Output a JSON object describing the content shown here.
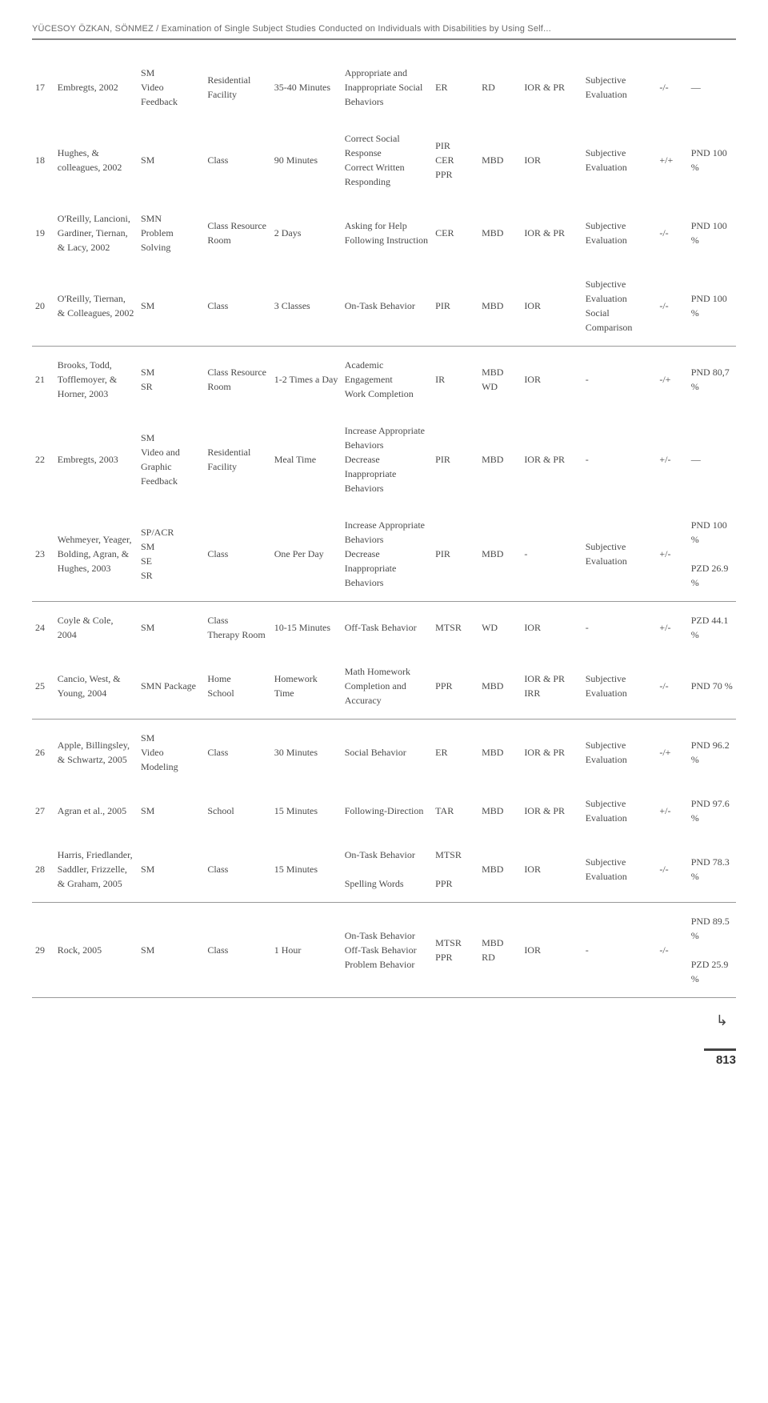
{
  "header": {
    "running": "YÜCESOY ÖZKAN, SÖNMEZ / Examination of Single Subject Studies Conducted on Individuals with Disabilities by Using Self..."
  },
  "page_number": "813",
  "continue_glyph": "↳",
  "rows": [
    {
      "n": "17",
      "authors": "Embregts, 2002",
      "method": "SM\nVideo Feedback",
      "setting": "Residential Facility",
      "duration": "35-40 Minutes",
      "dv": "Appropriate and Inappropriate Social Behaviors",
      "rec": "ER",
      "design": "RD",
      "rel": "IOR & PR",
      "sv": "Subjective Evaluation",
      "gm": "-/-",
      "eff": "—",
      "sep": false
    },
    {
      "n": "18",
      "authors": "Hughes, & colleagues, 2002",
      "method": "SM",
      "setting": "Class",
      "duration": "90 Minutes",
      "dv": "Correct Social Response\nCorrect Written Responding",
      "rec": "PIR\nCER\nPPR",
      "design": "MBD",
      "rel": "IOR",
      "sv": "Subjective Evaluation",
      "gm": "+/+",
      "eff": "PND 100 %",
      "sep": false
    },
    {
      "n": "19",
      "authors": "O'Reilly, Lancioni, Gardiner, Tiernan, & Lacy, 2002",
      "method": "SMN\nProblem Solving",
      "setting": "Class Resource Room",
      "duration": "2 Days",
      "dv": "Asking for Help\nFollowing Instruction",
      "rec": "CER",
      "design": "MBD",
      "rel": "IOR & PR",
      "sv": "Subjective Evaluation",
      "gm": "-/-",
      "eff": "PND 100 %",
      "sep": false
    },
    {
      "n": "20",
      "authors": "O'Reilly, Tiernan, & Colleagues, 2002",
      "method": "SM",
      "setting": "Class",
      "duration": "3 Classes",
      "dv": "On-Task Behavior",
      "rec": "PIR",
      "design": "MBD",
      "rel": "IOR",
      "sv": "Subjective Evaluation\nSocial Comparison",
      "gm": "-/-",
      "eff": "PND 100 %",
      "sep": true
    },
    {
      "n": "21",
      "authors": "Brooks, Todd, Tofflemoyer, & Horner, 2003",
      "method": "SM\nSR",
      "setting": "Class Resource Room",
      "duration": "1-2 Times a Day",
      "dv": "Academic Engagement\nWork Completion",
      "rec": "IR",
      "design": "MBD\nWD",
      "rel": "IOR",
      "sv": "-",
      "gm": "-/+",
      "eff": "PND 80,7 %",
      "sep": false
    },
    {
      "n": "22",
      "authors": "Embregts, 2003",
      "method": "SM\nVideo and Graphic Feedback",
      "setting": "Residential Facility",
      "duration": "Meal Time",
      "dv": "Increase Appropriate Behaviors\nDecrease Inappropriate Behaviors",
      "rec": "PIR",
      "design": "MBD",
      "rel": "IOR & PR",
      "sv": "-",
      "gm": "+/-",
      "eff": "—",
      "sep": false
    },
    {
      "n": "23",
      "authors": "Wehmeyer, Yeager, Bolding, Agran, & Hughes, 2003",
      "method": "SP/ACR\nSM\nSE\nSR",
      "setting": "Class",
      "duration": "One Per Day",
      "dv": "Increase Appropriate Behaviors\nDecrease Inappropriate Behaviors",
      "rec": "PIR",
      "design": "MBD",
      "rel": "-",
      "sv": "Subjective Evaluation",
      "gm": "+/-",
      "eff": "PND 100 %\n\nPZD 26.9 %",
      "sep": true
    },
    {
      "n": "24",
      "authors": "Coyle & Cole, 2004",
      "method": "SM",
      "setting": "Class\nTherapy Room",
      "duration": "10-15 Minutes",
      "dv": "Off-Task Behavior",
      "rec": "MTSR",
      "design": "WD",
      "rel": "IOR",
      "sv": "-",
      "gm": "+/-",
      "eff": "PZD 44.1 %",
      "sep": false
    },
    {
      "n": "25",
      "authors": "Cancio, West, & Young, 2004",
      "method": "SMN Package",
      "setting": "Home\nSchool",
      "duration": "Homework Time",
      "dv": "Math Homework Completion and Accuracy",
      "rec": "PPR",
      "design": "MBD",
      "rel": "IOR & PR\nIRR",
      "sv": "Subjective Evaluation",
      "gm": "-/-",
      "eff": "PND 70 %",
      "sep": true
    },
    {
      "n": "26",
      "authors": "Apple, Billingsley, & Schwartz, 2005",
      "method": "SM\nVideo Modeling",
      "setting": "Class",
      "duration": "30 Minutes",
      "dv": "Social Behavior",
      "rec": "ER",
      "design": "MBD",
      "rel": "IOR & PR",
      "sv": "Subjective Evaluation",
      "gm": "-/+",
      "eff": "PND 96.2 %",
      "sep": false
    },
    {
      "n": "27",
      "authors": "Agran et al., 2005",
      "method": "SM",
      "setting": "School",
      "duration": "15 Minutes",
      "dv": "Following-Direction",
      "rec": "TAR",
      "design": "MBD",
      "rel": "IOR & PR",
      "sv": "Subjective Evaluation",
      "gm": "+/-",
      "eff": "PND 97.6 %",
      "sep": false
    },
    {
      "n": "28",
      "authors": "Harris, Friedlander, Saddler, Frizzelle, & Graham, 2005",
      "method": "SM",
      "setting": "Class",
      "duration": "15 Minutes",
      "dv": "On-Task Behavior\n\nSpelling Words",
      "rec": "MTSR\n\nPPR",
      "design": "MBD",
      "rel": "IOR",
      "sv": "Subjective Evaluation",
      "gm": "-/-",
      "eff": "PND 78.3 %",
      "sep": true
    },
    {
      "n": "29",
      "authors": "Rock, 2005",
      "method": "SM",
      "setting": "Class",
      "duration": "1 Hour",
      "dv": "On-Task Behavior\nOff-Task Behavior\nProblem Behavior",
      "rec": "MTSR\nPPR",
      "design": "MBD\nRD",
      "rel": "IOR",
      "sv": "-",
      "gm": "-/-",
      "eff": "PND 89.5 %\n\nPZD 25.9 %",
      "sep": true
    }
  ]
}
